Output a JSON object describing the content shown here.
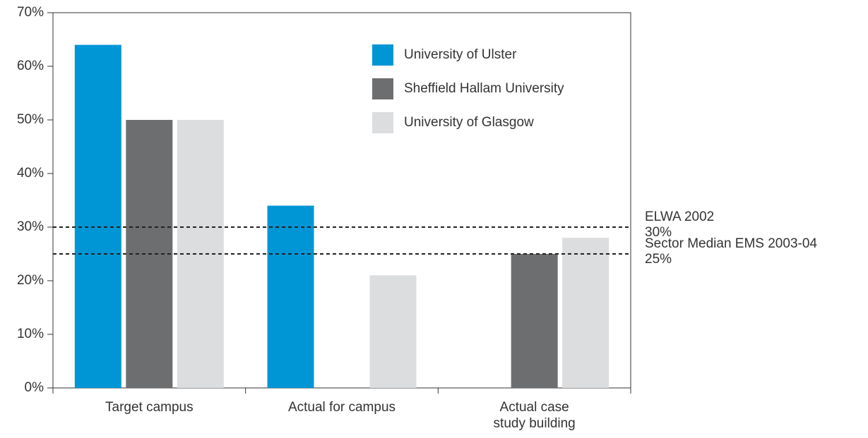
{
  "chart_data": {
    "type": "bar",
    "categories": [
      "Target campus",
      "Actual for campus",
      "Actual case\nstudy building"
    ],
    "series": [
      {
        "name": "University of Ulster",
        "color": "#0096d6",
        "values": [
          64,
          34,
          0
        ]
      },
      {
        "name": "Sheffield Hallam University",
        "color": "#6d6e70",
        "values": [
          50,
          0,
          25
        ]
      },
      {
        "name": "University of Glasgow",
        "color": "#dcdddf",
        "values": [
          50,
          21,
          28
        ]
      }
    ],
    "reference_lines": [
      {
        "name": "ELWA 2002",
        "value": 30,
        "value_label": "30%"
      },
      {
        "name": "Sector Median EMS 2003-04",
        "value": 25,
        "value_label": "25%"
      }
    ],
    "ylim": [
      0,
      70
    ],
    "yticks": [
      {
        "value": 0,
        "label": "0%"
      },
      {
        "value": 10,
        "label": "10%"
      },
      {
        "value": 20,
        "label": "20%"
      },
      {
        "value": 30,
        "label": "30%"
      },
      {
        "value": 40,
        "label": "40%"
      },
      {
        "value": 50,
        "label": "50%"
      },
      {
        "value": 60,
        "label": "60%"
      },
      {
        "value": 70,
        "label": "70%"
      }
    ],
    "legend": "upper right",
    "grid": false
  }
}
